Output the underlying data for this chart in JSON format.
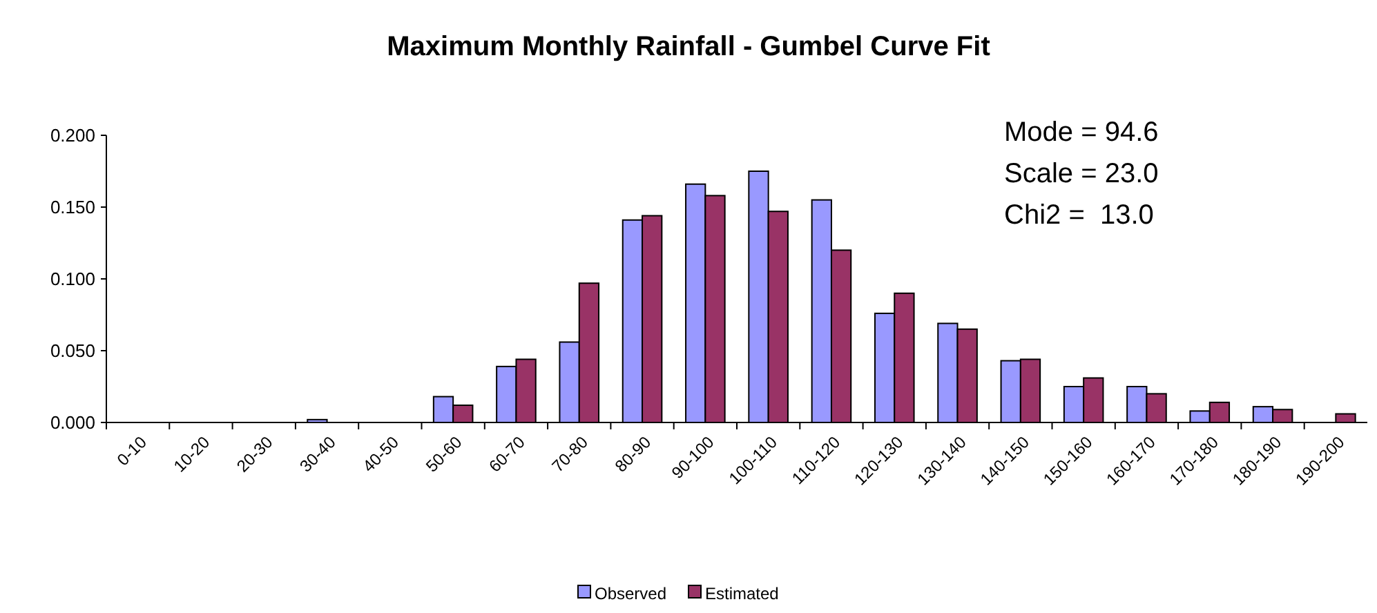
{
  "chart_data": {
    "type": "bar",
    "title": "Maximum Monthly Rainfall - Gumbel Curve Fit",
    "categories": [
      "0-10",
      "10-20",
      "20-30",
      "30-40",
      "40-50",
      "50-60",
      "60-70",
      "70-80",
      "80-90",
      "90-100",
      "100-110",
      "110-120",
      "120-130",
      "130-140",
      "140-150",
      "150-160",
      "160-170",
      "170-180",
      "180-190",
      "190-200"
    ],
    "series": [
      {
        "name": "Observed",
        "color": "#9999ff",
        "values": [
          0,
          0,
          0,
          0.002,
          0,
          0.018,
          0.039,
          0.056,
          0.141,
          0.166,
          0.175,
          0.155,
          0.076,
          0.069,
          0.043,
          0.025,
          0.025,
          0.008,
          0.011,
          0
        ]
      },
      {
        "name": "Estimated",
        "color": "#993366",
        "values": [
          0,
          0,
          0,
          null,
          null,
          0.012,
          0.044,
          0.097,
          0.144,
          0.158,
          0.147,
          0.12,
          0.09,
          0.065,
          0.044,
          0.031,
          0.02,
          0.014,
          0.009,
          0.006
        ]
      }
    ],
    "ylim": [
      0,
      0.2
    ],
    "yticks": [
      {
        "value": 0,
        "label": "0.000"
      },
      {
        "value": 0.05,
        "label": "0.050"
      },
      {
        "value": 0.1,
        "label": "0.100"
      },
      {
        "value": 0.15,
        "label": "0.150"
      },
      {
        "value": 0.2,
        "label": "0.200"
      }
    ],
    "annotations": [
      "Mode = 94.6",
      "Scale = 23.0",
      "Chi2 =  13.0"
    ],
    "grid": false,
    "legend": "bottom"
  }
}
